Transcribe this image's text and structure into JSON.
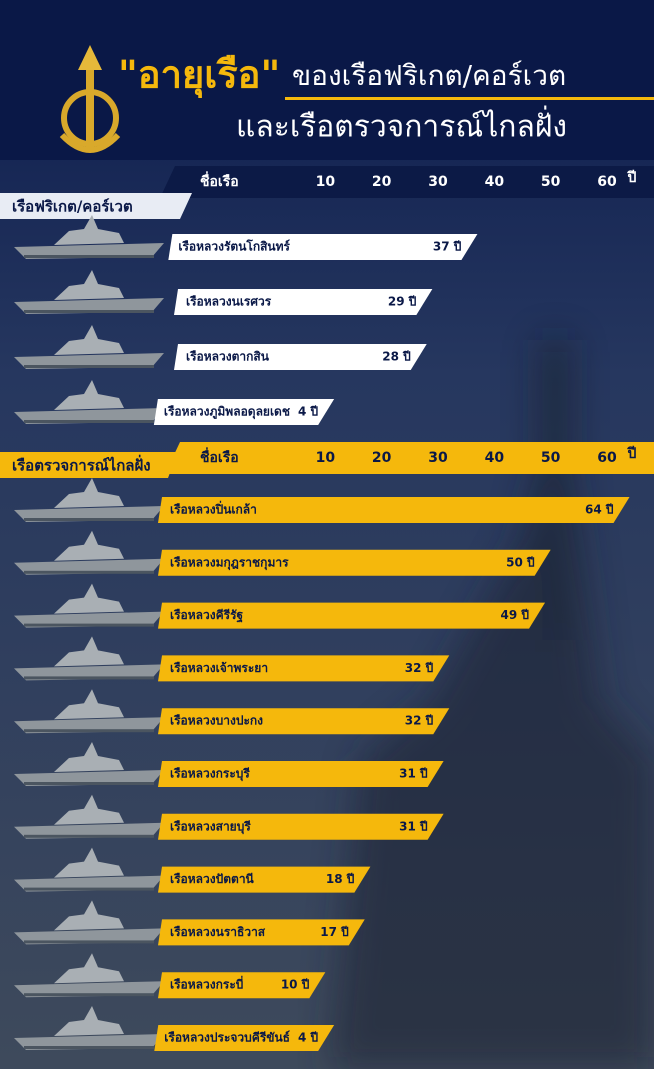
{
  "header": {
    "title_highlight": "\"อายุเรือ\"",
    "title_rest": "ของเรือฟริเกต/คอร์เวต",
    "subtitle": "และเรือตรวจการณ์ไกลฝั่ง"
  },
  "chart_data": [
    {
      "type": "bar",
      "title": "เรือฟริเกต/คอร์เวต",
      "category_label": "ชื่อเรือ",
      "x_label": "ปี",
      "color": "#ffffff",
      "categories": [
        "เรือหลวงรัตนโกสินทร์",
        "เรือหลวงนเรศวร",
        "เรือหลวงตากสิน",
        "เรือหลวงภูมิพลอดุลยเดช"
      ],
      "values": [
        37,
        29,
        28,
        4
      ],
      "value_labels": [
        "37 ปี",
        "29 ปี",
        "28 ปี",
        "4 ปี"
      ],
      "xlim": [
        0,
        60
      ],
      "xticks": [
        10,
        20,
        30,
        40,
        50,
        60
      ]
    },
    {
      "type": "bar",
      "title": "เรือตรวจการณ์ไกลฝั่ง",
      "category_label": "ชื่อเรือ",
      "x_label": "ปี",
      "color": "#f5b80c",
      "categories": [
        "เรือหลวงปิ่นเกล้า",
        "เรือหลวงมกุฎราชกุมาร",
        "เรือหลวงคีรีรัฐ",
        "เรือหลวงเจ้าพระยา",
        "เรือหลวงบางปะกง",
        "เรือหลวงกระบุรี",
        "เรือหลวงสายบุรี",
        "เรือหลวงปัตตานี",
        "เรือหลวงนราธิวาส",
        "เรือหลวงกระบี่",
        "เรือหลวงประจวบคีรีขันธ์"
      ],
      "values": [
        64,
        50,
        49,
        32,
        32,
        31,
        31,
        18,
        17,
        10,
        4
      ],
      "value_labels": [
        "64 ปี",
        "50 ปี",
        "49 ปี",
        "32 ปี",
        "32 ปี",
        "31 ปี",
        "31 ปี",
        "18 ปี",
        "17 ปี",
        "10 ปี",
        "4 ปี"
      ],
      "xlim": [
        0,
        60
      ],
      "xticks": [
        10,
        20,
        30,
        40,
        50,
        60
      ]
    }
  ]
}
